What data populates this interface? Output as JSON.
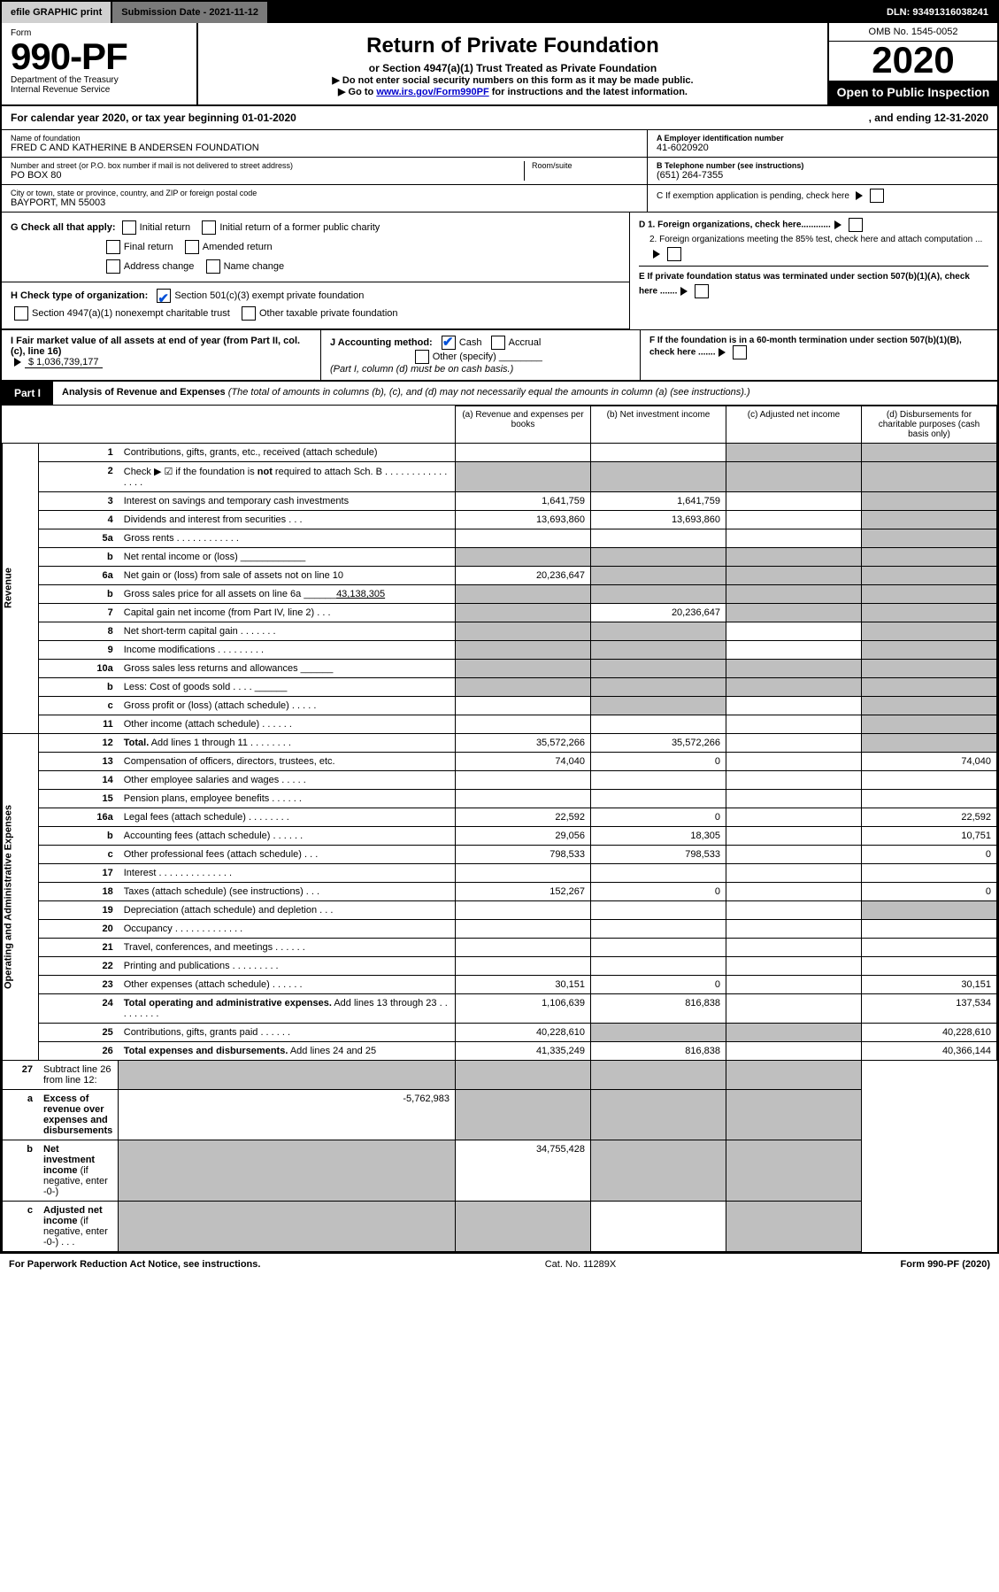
{
  "topbar": {
    "efile": "efile GRAPHIC print",
    "submission": "Submission Date - 2021-11-12",
    "dln": "DLN: 93491316038241"
  },
  "header": {
    "form_word": "Form",
    "form_no": "990-PF",
    "dept": "Department of the Treasury",
    "irs": "Internal Revenue Service",
    "title": "Return of Private Foundation",
    "subtitle": "or Section 4947(a)(1) Trust Treated as Private Foundation",
    "instr1": "▶ Do not enter social security numbers on this form as it may be made public.",
    "instr2_prefix": "▶ Go to ",
    "instr2_link": "www.irs.gov/Form990PF",
    "instr2_suffix": " for instructions and the latest information.",
    "omb": "OMB No. 1545-0052",
    "year": "2020",
    "open": "Open to Public Inspection"
  },
  "calendar": {
    "line": "For calendar year 2020, or tax year beginning 01-01-2020",
    "ending": ", and ending 12-31-2020"
  },
  "meta": {
    "name_label": "Name of foundation",
    "name": "FRED C AND KATHERINE B ANDERSEN FOUNDATION",
    "addr_label": "Number and street (or P.O. box number if mail is not delivered to street address)",
    "addr": "PO BOX 80",
    "room_label": "Room/suite",
    "city_label": "City or town, state or province, country, and ZIP or foreign postal code",
    "city": "BAYPORT, MN  55003",
    "a_label": "A Employer identification number",
    "a_val": "41-6020920",
    "b_label": "B Telephone number (see instructions)",
    "b_val": "(651) 264-7355",
    "c_label": "C If exemption application is pending, check here",
    "d1": "D 1. Foreign organizations, check here............",
    "d2": "2. Foreign organizations meeting the 85% test, check here and attach computation ...",
    "e": "E  If private foundation status was terminated under section 507(b)(1)(A), check here .......",
    "f": "F  If the foundation is in a 60-month termination under section 507(b)(1)(B), check here .......",
    "g_label": "G Check all that apply:",
    "g_opts": [
      "Initial return",
      "Initial return of a former public charity",
      "Final return",
      "Amended return",
      "Address change",
      "Name change"
    ],
    "h_label": "H Check type of organization:",
    "h1": "Section 501(c)(3) exempt private foundation",
    "h2": "Section 4947(a)(1) nonexempt charitable trust",
    "h3": "Other taxable private foundation",
    "i_label": "I Fair market value of all assets at end of year (from Part II, col. (c), line 16)",
    "i_val": "$  1,036,739,177",
    "j_label": "J Accounting method:",
    "j_cash": "Cash",
    "j_accrual": "Accrual",
    "j_other": "Other (specify)",
    "j_note": "(Part I, column (d) must be on cash basis.)"
  },
  "part1": {
    "tab": "Part I",
    "title": "Analysis of Revenue and Expenses",
    "note": " (The total of amounts in columns (b), (c), and (d) may not necessarily equal the amounts in column (a) (see instructions).)",
    "cols": {
      "a": "(a)  Revenue and expenses per books",
      "b": "(b)  Net investment income",
      "c": "(c)  Adjusted net income",
      "d": "(d)  Disbursements for charitable purposes (cash basis only)"
    },
    "side_rev": "Revenue",
    "side_exp": "Operating and Administrative Expenses"
  },
  "rows": [
    {
      "n": "1",
      "d": "Contributions, gifts, grants, etc., received (attach schedule)",
      "a": "",
      "b": "",
      "c": "",
      "dd": "",
      "sh": [
        "c",
        "dd"
      ]
    },
    {
      "n": "2",
      "d": "Check ▶ ☑ if the foundation is <b>not</b> required to attach Sch. B  .  .  .  .  .  .  .  .  .  .  .  .  .  .  .  .",
      "a": "",
      "b": "",
      "c": "",
      "dd": "",
      "sh": [
        "a",
        "b",
        "c",
        "dd"
      ]
    },
    {
      "n": "3",
      "d": "Interest on savings and temporary cash investments",
      "a": "1,641,759",
      "b": "1,641,759",
      "c": "",
      "dd": "",
      "sh": [
        "dd"
      ]
    },
    {
      "n": "4",
      "d": "Dividends and interest from securities   .  .  .",
      "a": "13,693,860",
      "b": "13,693,860",
      "c": "",
      "dd": "",
      "sh": [
        "dd"
      ]
    },
    {
      "n": "5a",
      "d": "Gross rents   .  .  .  .  .  .  .  .  .  .  .  .",
      "a": "",
      "b": "",
      "c": "",
      "dd": "",
      "sh": [
        "dd"
      ]
    },
    {
      "n": "b",
      "d": "Net rental income or (loss) ____________",
      "a": "",
      "b": "",
      "c": "",
      "dd": "",
      "sh": [
        "a",
        "b",
        "c",
        "dd"
      ]
    },
    {
      "n": "6a",
      "d": "Net gain or (loss) from sale of assets not on line 10",
      "a": "20,236,647",
      "b": "",
      "c": "",
      "dd": "",
      "sh": [
        "b",
        "c",
        "dd"
      ]
    },
    {
      "n": "b",
      "d": "Gross sales price for all assets on line 6a ______<u>43,138,305</u>",
      "a": "",
      "b": "",
      "c": "",
      "dd": "",
      "sh": [
        "a",
        "b",
        "c",
        "dd"
      ]
    },
    {
      "n": "7",
      "d": "Capital gain net income (from Part IV, line 2)  .  .  .",
      "a": "",
      "b": "20,236,647",
      "c": "",
      "dd": "",
      "sh": [
        "a",
        "c",
        "dd"
      ]
    },
    {
      "n": "8",
      "d": "Net short-term capital gain  .  .  .  .  .  .  .",
      "a": "",
      "b": "",
      "c": "",
      "dd": "",
      "sh": [
        "a",
        "b",
        "dd"
      ]
    },
    {
      "n": "9",
      "d": "Income modifications  .  .  .  .  .  .  .  .  .",
      "a": "",
      "b": "",
      "c": "",
      "dd": "",
      "sh": [
        "a",
        "b",
        "dd"
      ]
    },
    {
      "n": "10a",
      "d": "Gross sales less returns and allowances ______",
      "a": "",
      "b": "",
      "c": "",
      "dd": "",
      "sh": [
        "a",
        "b",
        "c",
        "dd"
      ]
    },
    {
      "n": "b",
      "d": "Less: Cost of goods sold   .  .  .  . ______",
      "a": "",
      "b": "",
      "c": "",
      "dd": "",
      "sh": [
        "a",
        "b",
        "c",
        "dd"
      ]
    },
    {
      "n": "c",
      "d": "Gross profit or (loss) (attach schedule)   .  .  .  .  .",
      "a": "",
      "b": "",
      "c": "",
      "dd": "",
      "sh": [
        "b",
        "dd"
      ]
    },
    {
      "n": "11",
      "d": "Other income (attach schedule)   .  .  .  .  .  .",
      "a": "",
      "b": "",
      "c": "",
      "dd": "",
      "sh": [
        "dd"
      ]
    },
    {
      "n": "12",
      "d": "<b>Total.</b> Add lines 1 through 11  .  .  .  .  .  .  .  .",
      "a": "35,572,266",
      "b": "35,572,266",
      "c": "",
      "dd": "",
      "sh": [
        "dd"
      ]
    },
    {
      "n": "13",
      "d": "Compensation of officers, directors, trustees, etc.",
      "a": "74,040",
      "b": "0",
      "c": "",
      "dd": "74,040"
    },
    {
      "n": "14",
      "d": "Other employee salaries and wages   .  .  .  .  .",
      "a": "",
      "b": "",
      "c": "",
      "dd": ""
    },
    {
      "n": "15",
      "d": "Pension plans, employee benefits  .  .  .  .  .  .",
      "a": "",
      "b": "",
      "c": "",
      "dd": ""
    },
    {
      "n": "16a",
      "d": "Legal fees (attach schedule) .  .  .  .  .  .  .  .",
      "a": "22,592",
      "b": "0",
      "c": "",
      "dd": "22,592"
    },
    {
      "n": "b",
      "d": "Accounting fees (attach schedule) .  .  .  .  .  .",
      "a": "29,056",
      "b": "18,305",
      "c": "",
      "dd": "10,751"
    },
    {
      "n": "c",
      "d": "Other professional fees (attach schedule)   .  .  .",
      "a": "798,533",
      "b": "798,533",
      "c": "",
      "dd": "0"
    },
    {
      "n": "17",
      "d": "Interest .  .  .  .  .  .  .  .  .  .  .  .  .  .",
      "a": "",
      "b": "",
      "c": "",
      "dd": ""
    },
    {
      "n": "18",
      "d": "Taxes (attach schedule) (see instructions)    .  .  .",
      "a": "152,267",
      "b": "0",
      "c": "",
      "dd": "0"
    },
    {
      "n": "19",
      "d": "Depreciation (attach schedule) and depletion   .  .  .",
      "a": "",
      "b": "",
      "c": "",
      "dd": "",
      "sh": [
        "dd"
      ]
    },
    {
      "n": "20",
      "d": "Occupancy .  .  .  .  .  .  .  .  .  .  .  .  .",
      "a": "",
      "b": "",
      "c": "",
      "dd": ""
    },
    {
      "n": "21",
      "d": "Travel, conferences, and meetings .  .  .  .  .  .",
      "a": "",
      "b": "",
      "c": "",
      "dd": ""
    },
    {
      "n": "22",
      "d": "Printing and publications .  .  .  .  .  .  .  .  .",
      "a": "",
      "b": "",
      "c": "",
      "dd": ""
    },
    {
      "n": "23",
      "d": "Other expenses (attach schedule) .  .  .  .  .  .",
      "a": "30,151",
      "b": "0",
      "c": "",
      "dd": "30,151"
    },
    {
      "n": "24",
      "d": "<b>Total operating and administrative expenses.</b> Add lines 13 through 23  .  .  .  .  .  .  .  .  .",
      "a": "1,106,639",
      "b": "816,838",
      "c": "",
      "dd": "137,534"
    },
    {
      "n": "25",
      "d": "Contributions, gifts, grants paid   .  .  .  .  .  .",
      "a": "40,228,610",
      "b": "",
      "c": "",
      "dd": "40,228,610",
      "sh": [
        "b",
        "c"
      ]
    },
    {
      "n": "26",
      "d": "<b>Total expenses and disbursements.</b> Add lines 24 and 25",
      "a": "41,335,249",
      "b": "816,838",
      "c": "",
      "dd": "40,366,144"
    },
    {
      "n": "27",
      "d": "Subtract line 26 from line 12:",
      "a": "",
      "b": "",
      "c": "",
      "dd": "",
      "sh": [
        "a",
        "b",
        "c",
        "dd"
      ]
    },
    {
      "n": "a",
      "d": "<b>Excess of revenue over expenses and disbursements</b>",
      "a": "-5,762,983",
      "b": "",
      "c": "",
      "dd": "",
      "sh": [
        "b",
        "c",
        "dd"
      ]
    },
    {
      "n": "b",
      "d": "<b>Net investment income</b> (if negative, enter -0-)",
      "a": "",
      "b": "34,755,428",
      "c": "",
      "dd": "",
      "sh": [
        "a",
        "c",
        "dd"
      ]
    },
    {
      "n": "c",
      "d": "<b>Adjusted net income</b> (if negative, enter -0-)  .  .  .",
      "a": "",
      "b": "",
      "c": "",
      "dd": "",
      "sh": [
        "a",
        "b",
        "dd"
      ]
    }
  ],
  "footer": {
    "left": "For Paperwork Reduction Act Notice, see instructions.",
    "mid": "Cat. No. 11289X",
    "right": "Form 990-PF (2020)"
  }
}
